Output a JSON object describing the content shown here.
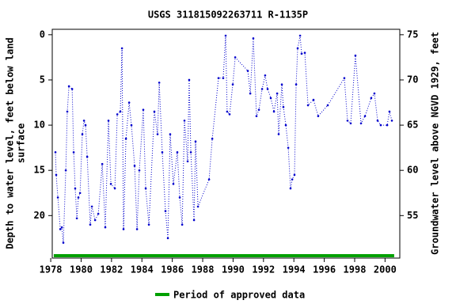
{
  "chart_data": {
    "type": "line",
    "title": "USGS 311815092263711 R-1135P",
    "y_label": [
      "Depth to water level, feet below land",
      "surface"
    ],
    "y2_label": "Groundwater level above NGVD 1929, feet",
    "xlim": [
      1978.1,
      2000.97
    ],
    "xticks": [
      1978,
      1980,
      1982,
      1984,
      1986,
      1988,
      1990,
      1992,
      1994,
      1996,
      1998,
      2000
    ],
    "ylim": [
      -0.6,
      24.7
    ],
    "yticks": [
      0,
      5,
      10,
      15,
      20
    ],
    "y2lim": [
      75.6,
      50.3
    ],
    "y2ticks": [
      55,
      60,
      65,
      70,
      75
    ],
    "x": [
      1978.31,
      1978.36,
      1978.47,
      1978.63,
      1978.73,
      1978.83,
      1978.99,
      1979.09,
      1979.2,
      1979.41,
      1979.51,
      1979.61,
      1979.72,
      1979.82,
      1979.93,
      1980.08,
      1980.19,
      1980.29,
      1980.4,
      1980.6,
      1980.71,
      1980.92,
      1981.13,
      1981.39,
      1981.59,
      1981.8,
      1981.96,
      1982.22,
      1982.38,
      1982.58,
      1982.69,
      1982.79,
      1982.95,
      1983.16,
      1983.31,
      1983.52,
      1983.68,
      1983.83,
      1984.09,
      1984.25,
      1984.46,
      1984.82,
      1985.03,
      1985.14,
      1985.34,
      1985.55,
      1985.71,
      1985.86,
      1986.07,
      1986.33,
      1986.49,
      1986.65,
      1986.8,
      1987.01,
      1987.11,
      1987.22,
      1987.43,
      1987.53,
      1987.69,
      1988.42,
      1988.63,
      1989.04,
      1989.35,
      1989.51,
      1989.61,
      1989.77,
      1989.98,
      1990.14,
      1990.97,
      1991.13,
      1991.33,
      1991.54,
      1991.7,
      1991.91,
      1992.11,
      1992.27,
      1992.48,
      1992.69,
      1992.9,
      1993.0,
      1993.21,
      1993.31,
      1993.47,
      1993.63,
      1993.78,
      1993.89,
      1994.04,
      1994.15,
      1994.25,
      1994.41,
      1994.51,
      1994.72,
      1994.93,
      1995.29,
      1995.6,
      1996.23,
      1997.32,
      1997.53,
      1997.74,
      1998.05,
      1998.42,
      1998.68,
      1999.09,
      1999.3,
      1999.51,
      1999.72,
      2000.14,
      2000.29,
      2000.45
    ],
    "series": [
      {
        "color": "#0000cc",
        "values": [
          13,
          15.5,
          18,
          21.5,
          21.3,
          23,
          15,
          8.5,
          5.7,
          6,
          13,
          17,
          20.3,
          18,
          17.5,
          11,
          9.5,
          10,
          13.5,
          21,
          19,
          20.5,
          19.8,
          14.3,
          21.3,
          9.5,
          16.5,
          17,
          8.8,
          8.5,
          1.5,
          21.5,
          11.5,
          7.5,
          10,
          14.5,
          21.5,
          15,
          8.3,
          17,
          21,
          8.5,
          11,
          5.3,
          13,
          19.5,
          22.5,
          11,
          16.5,
          13,
          18,
          21,
          9.5,
          14,
          5,
          13,
          20.5,
          11.8,
          19,
          16,
          11.5,
          4.8,
          4.8,
          0.1,
          8.5,
          8.8,
          5.5,
          2.5,
          4,
          6.5,
          0.4,
          9,
          8.3,
          6,
          4.5,
          6,
          7,
          8.5,
          6.5,
          11,
          5.5,
          8,
          10,
          12.5,
          17,
          16,
          15.5,
          5.5,
          1.5,
          0.1,
          2.1,
          2,
          7.8,
          7.2,
          9,
          7.8,
          4.8,
          9.5,
          9.8,
          2.3,
          9.8,
          9,
          7,
          6.5,
          9.5,
          10,
          10,
          8.5,
          9.5
        ]
      }
    ],
    "approved_period": {
      "name": "Period of approved data",
      "color": "#00a000",
      "x": [
        1978.2,
        2000.6
      ]
    }
  }
}
